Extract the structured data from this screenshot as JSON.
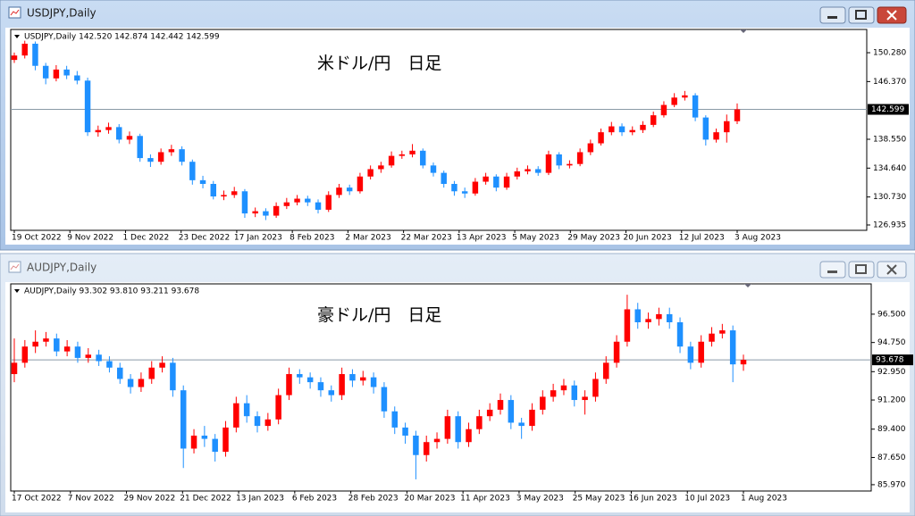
{
  "windows": [
    {
      "title": "USDJPY,Daily",
      "chart": {
        "type": "candlestick",
        "header": "USDJPY,Daily  142.520 142.874 142.442 142.599",
        "annotation": "米ドル/円　日足",
        "up_color": "#ff0000",
        "down_color": "#1e90ff",
        "candles": [
          [
            149.3,
            150.3,
            148.9,
            149.9
          ],
          [
            149.9,
            151.9,
            149.5,
            151.5
          ],
          [
            151.5,
            151.8,
            147.9,
            148.5
          ],
          [
            148.5,
            148.9,
            146.0,
            146.8
          ],
          [
            146.8,
            148.6,
            146.4,
            148.0
          ],
          [
            148.0,
            148.5,
            146.7,
            147.2
          ],
          [
            147.2,
            147.8,
            146.0,
            146.5
          ],
          [
            146.5,
            146.9,
            139.0,
            139.5
          ],
          [
            139.5,
            140.4,
            138.9,
            139.8
          ],
          [
            139.8,
            140.8,
            139.3,
            140.2
          ],
          [
            140.2,
            140.6,
            138.0,
            138.5
          ],
          [
            138.5,
            139.6,
            137.9,
            139.0
          ],
          [
            139.0,
            139.3,
            135.5,
            136.0
          ],
          [
            136.0,
            136.5,
            134.8,
            135.5
          ],
          [
            135.5,
            137.3,
            135.1,
            136.8
          ],
          [
            136.8,
            137.8,
            136.3,
            137.2
          ],
          [
            137.2,
            137.6,
            135.0,
            135.5
          ],
          [
            135.5,
            135.8,
            132.4,
            133.0
          ],
          [
            133.0,
            133.6,
            131.9,
            132.5
          ],
          [
            132.5,
            132.9,
            130.4,
            130.8
          ],
          [
            130.8,
            131.6,
            130.3,
            131.0
          ],
          [
            131.0,
            132.1,
            130.6,
            131.5
          ],
          [
            131.5,
            131.8,
            127.9,
            128.5
          ],
          [
            128.5,
            129.3,
            128.0,
            128.8
          ],
          [
            128.8,
            129.2,
            127.6,
            128.2
          ],
          [
            128.2,
            130.0,
            127.9,
            129.5
          ],
          [
            129.5,
            130.6,
            129.1,
            130.0
          ],
          [
            130.0,
            131.0,
            129.6,
            130.5
          ],
          [
            130.5,
            130.9,
            129.5,
            130.0
          ],
          [
            130.0,
            130.4,
            128.5,
            129.0
          ],
          [
            129.0,
            131.5,
            128.7,
            131.0
          ],
          [
            131.0,
            132.5,
            130.6,
            132.0
          ],
          [
            132.0,
            132.4,
            131.0,
            131.5
          ],
          [
            131.5,
            134.0,
            131.2,
            133.5
          ],
          [
            133.5,
            135.0,
            133.1,
            134.5
          ],
          [
            134.5,
            135.5,
            134.0,
            135.0
          ],
          [
            135.0,
            136.9,
            134.7,
            136.3
          ],
          [
            136.3,
            137.0,
            135.9,
            136.5
          ],
          [
            136.5,
            137.9,
            136.1,
            137.0
          ],
          [
            137.0,
            137.3,
            134.6,
            135.0
          ],
          [
            135.0,
            135.4,
            133.5,
            134.0
          ],
          [
            134.0,
            134.3,
            132.0,
            132.5
          ],
          [
            132.5,
            132.9,
            130.9,
            131.5
          ],
          [
            131.5,
            132.0,
            130.6,
            131.2
          ],
          [
            131.2,
            133.3,
            130.9,
            132.8
          ],
          [
            132.8,
            134.0,
            132.4,
            133.5
          ],
          [
            133.5,
            133.8,
            131.5,
            132.0
          ],
          [
            132.0,
            134.0,
            131.7,
            133.5
          ],
          [
            133.5,
            134.7,
            133.1,
            134.2
          ],
          [
            134.2,
            135.0,
            133.8,
            134.5
          ],
          [
            134.5,
            134.9,
            133.6,
            134.0
          ],
          [
            134.0,
            137.0,
            133.7,
            136.5
          ],
          [
            136.5,
            136.8,
            134.5,
            135.0
          ],
          [
            135.0,
            135.7,
            134.6,
            135.2
          ],
          [
            135.2,
            137.3,
            134.9,
            136.8
          ],
          [
            136.8,
            138.5,
            136.4,
            138.0
          ],
          [
            138.0,
            140.0,
            137.7,
            139.5
          ],
          [
            139.5,
            140.9,
            139.1,
            140.3
          ],
          [
            140.3,
            140.7,
            139.0,
            139.5
          ],
          [
            139.5,
            140.3,
            139.1,
            139.8
          ],
          [
            139.8,
            141.0,
            139.4,
            140.5
          ],
          [
            140.5,
            142.3,
            140.2,
            141.8
          ],
          [
            141.8,
            143.7,
            141.5,
            143.2
          ],
          [
            143.2,
            144.8,
            142.9,
            144.2
          ],
          [
            144.2,
            145.1,
            143.8,
            144.5
          ],
          [
            144.5,
            144.8,
            141.0,
            141.5
          ],
          [
            141.5,
            141.8,
            137.7,
            138.5
          ],
          [
            138.5,
            140.0,
            138.1,
            139.5
          ],
          [
            139.5,
            141.9,
            138.1,
            141.0
          ],
          [
            141.0,
            143.4,
            140.6,
            142.599
          ]
        ],
        "categories": [
          "19 Oct 2022",
          "9 Nov 2022",
          "1 Dec 2022",
          "23 Dec 2022",
          "17 Jan 2023",
          "8 Feb 2023",
          "2 Mar 2023",
          "22 Mar 2023",
          "13 Apr 2023",
          "5 May 2023",
          "29 May 2023",
          "20 Jun 2023",
          "12 Jul 2023",
          "3 Aug 2023"
        ],
        "ylim": [
          126.21,
          153.43
        ],
        "yticks": [
          {
            "value": 150.28,
            "label": "150.280"
          },
          {
            "value": 146.37,
            "label": "146.370"
          },
          {
            "value": 138.55,
            "label": "138.550"
          },
          {
            "value": 134.64,
            "label": "134.640"
          },
          {
            "value": 130.73,
            "label": "130.730"
          },
          {
            "value": 126.935,
            "label": "126.935"
          }
        ],
        "current_price": {
          "value": 142.599,
          "label": "142.599"
        }
      }
    },
    {
      "title": "AUDJPY,Daily",
      "chart": {
        "type": "candlestick",
        "header": "AUDJPY,Daily  93.302 93.810 93.211 93.678",
        "annotation": "豪ドル/円　日足",
        "up_color": "#ff0000",
        "down_color": "#1e90ff",
        "candles": [
          [
            92.8,
            95.0,
            92.3,
            93.5
          ],
          [
            93.5,
            94.9,
            93.2,
            94.5
          ],
          [
            94.5,
            95.5,
            94.1,
            94.8
          ],
          [
            94.8,
            95.4,
            94.5,
            95.0
          ],
          [
            95.0,
            95.3,
            93.9,
            94.2
          ],
          [
            94.2,
            94.9,
            93.9,
            94.5
          ],
          [
            94.5,
            94.8,
            93.5,
            93.8
          ],
          [
            93.8,
            94.4,
            93.5,
            94.0
          ],
          [
            94.0,
            94.3,
            93.3,
            93.6
          ],
          [
            93.6,
            93.9,
            92.9,
            93.2
          ],
          [
            93.2,
            93.5,
            92.2,
            92.5
          ],
          [
            92.5,
            92.8,
            91.6,
            92.0
          ],
          [
            92.0,
            92.9,
            91.7,
            92.5
          ],
          [
            92.5,
            93.6,
            92.2,
            93.2
          ],
          [
            93.2,
            93.9,
            92.9,
            93.5
          ],
          [
            93.5,
            93.8,
            91.4,
            91.8
          ],
          [
            91.8,
            92.1,
            87.0,
            88.2
          ],
          [
            88.2,
            89.4,
            87.9,
            89.0
          ],
          [
            89.0,
            89.6,
            88.3,
            88.8
          ],
          [
            88.8,
            89.1,
            87.4,
            88.0
          ],
          [
            88.0,
            89.9,
            87.7,
            89.5
          ],
          [
            89.5,
            91.4,
            89.2,
            91.0
          ],
          [
            91.0,
            91.5,
            89.8,
            90.2
          ],
          [
            90.2,
            90.5,
            89.2,
            89.6
          ],
          [
            89.6,
            90.4,
            89.3,
            90.0
          ],
          [
            90.0,
            91.9,
            89.7,
            91.5
          ],
          [
            91.5,
            93.2,
            91.2,
            92.8
          ],
          [
            92.8,
            93.1,
            92.2,
            92.6
          ],
          [
            92.6,
            92.9,
            91.9,
            92.3
          ],
          [
            92.3,
            92.6,
            91.4,
            91.8
          ],
          [
            91.8,
            92.1,
            91.1,
            91.5
          ],
          [
            91.5,
            93.2,
            91.2,
            92.8
          ],
          [
            92.8,
            93.1,
            92.0,
            92.4
          ],
          [
            92.4,
            93.0,
            92.1,
            92.6
          ],
          [
            92.6,
            92.9,
            91.6,
            92.0
          ],
          [
            92.0,
            92.3,
            90.1,
            90.5
          ],
          [
            90.5,
            90.8,
            89.1,
            89.5
          ],
          [
            89.5,
            89.8,
            88.5,
            89.0
          ],
          [
            89.0,
            89.3,
            86.3,
            87.8
          ],
          [
            87.8,
            89.0,
            87.4,
            88.6
          ],
          [
            88.6,
            89.2,
            88.2,
            88.8
          ],
          [
            88.8,
            90.6,
            88.5,
            90.2
          ],
          [
            90.2,
            90.5,
            88.2,
            88.6
          ],
          [
            88.6,
            89.8,
            88.3,
            89.4
          ],
          [
            89.4,
            90.6,
            89.1,
            90.2
          ],
          [
            90.2,
            91.0,
            89.9,
            90.6
          ],
          [
            90.6,
            91.6,
            90.3,
            91.2
          ],
          [
            91.2,
            91.5,
            89.4,
            89.8
          ],
          [
            89.8,
            90.1,
            88.8,
            89.6
          ],
          [
            89.6,
            91.0,
            89.3,
            90.6
          ],
          [
            90.6,
            91.8,
            90.3,
            91.4
          ],
          [
            91.4,
            92.2,
            91.1,
            91.8
          ],
          [
            91.8,
            92.5,
            91.5,
            92.1
          ],
          [
            92.1,
            92.4,
            90.8,
            91.2
          ],
          [
            91.2,
            91.8,
            90.3,
            91.4
          ],
          [
            91.4,
            92.9,
            91.1,
            92.5
          ],
          [
            92.5,
            93.9,
            92.2,
            93.5
          ],
          [
            93.5,
            95.2,
            93.2,
            94.8
          ],
          [
            94.8,
            97.7,
            94.5,
            96.8
          ],
          [
            96.8,
            97.2,
            95.6,
            96.0
          ],
          [
            96.0,
            96.6,
            95.6,
            96.2
          ],
          [
            96.2,
            96.9,
            95.8,
            96.5
          ],
          [
            96.5,
            96.9,
            95.6,
            96.0
          ],
          [
            96.0,
            96.3,
            94.1,
            94.5
          ],
          [
            94.5,
            94.8,
            93.1,
            93.5
          ],
          [
            93.5,
            95.2,
            93.2,
            94.8
          ],
          [
            94.8,
            95.7,
            94.5,
            95.3
          ],
          [
            95.3,
            95.9,
            95.0,
            95.5
          ],
          [
            95.5,
            95.8,
            92.3,
            93.4
          ],
          [
            93.4,
            94.0,
            93.0,
            93.678
          ]
        ],
        "categories": [
          "17 Oct 2022",
          "7 Nov 2022",
          "29 Nov 2022",
          "21 Dec 2022",
          "13 Jan 2023",
          "6 Feb 2023",
          "28 Feb 2023",
          "20 Mar 2023",
          "11 Apr 2023",
          "3 May 2023",
          "25 May 2023",
          "16 Jun 2023",
          "10 Jul 2023",
          "1 Aug 2023"
        ],
        "ylim": [
          85.58,
          98.37
        ],
        "yticks": [
          {
            "value": 96.5,
            "label": "96.500"
          },
          {
            "value": 94.75,
            "label": "94.750"
          },
          {
            "value": 92.95,
            "label": "92.950"
          },
          {
            "value": 91.2,
            "label": "91.200"
          },
          {
            "value": 89.4,
            "label": "89.400"
          },
          {
            "value": 87.65,
            "label": "87.650"
          },
          {
            "value": 85.97,
            "label": "85.970"
          }
        ],
        "current_price": {
          "value": 93.678,
          "label": "93.678"
        }
      }
    }
  ]
}
